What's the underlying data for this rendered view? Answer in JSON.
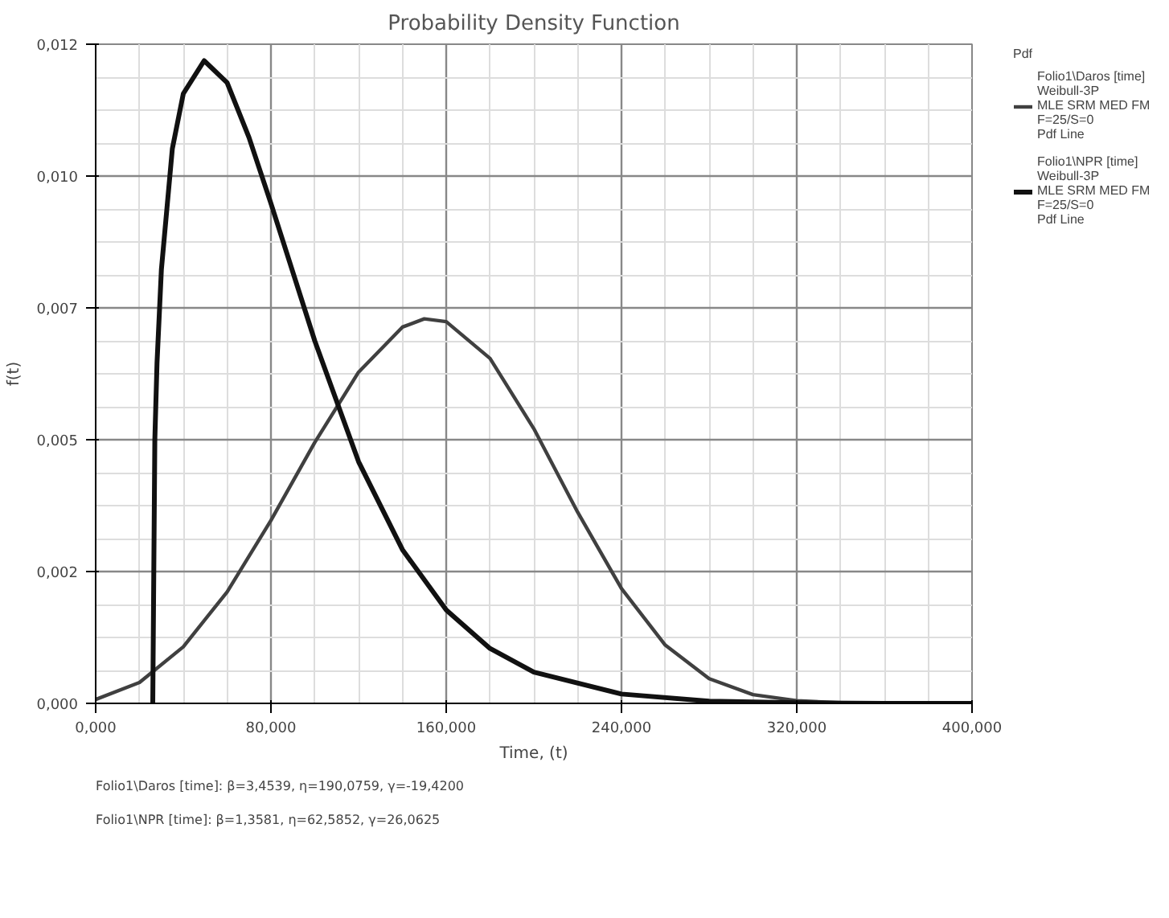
{
  "chart_data": {
    "type": "line",
    "title": "Probability Density Function",
    "xlabel": "Time, (t)",
    "ylabel": "f(t)",
    "legend_title": "Pdf",
    "legend": "right",
    "grid": true,
    "line_style": "solid",
    "marker": "none",
    "xlim": [
      0,
      400
    ],
    "ylim": [
      0,
      0.012
    ],
    "xticks": [
      {
        "value": 0,
        "label": "0,000"
      },
      {
        "value": 80,
        "label": "80,000"
      },
      {
        "value": 160,
        "label": "160,000"
      },
      {
        "value": 240,
        "label": "240,000"
      },
      {
        "value": 320,
        "label": "320,000"
      },
      {
        "value": 400,
        "label": "400,000"
      }
    ],
    "yticks": [
      {
        "value": 0,
        "label": "0,000"
      },
      {
        "value": 0.0024,
        "label": "0,002"
      },
      {
        "value": 0.0048,
        "label": "0,005"
      },
      {
        "value": 0.0072,
        "label": "0,007"
      },
      {
        "value": 0.0096,
        "label": "0,010"
      },
      {
        "value": 0.012,
        "label": "0,012"
      }
    ],
    "series": [
      {
        "name": "Folio1\\Daros [time]\nWeibull-3P\nMLE SRM MED FM\nF=25/S=0\nPdf Line",
        "color": "#404040",
        "x": [
          0,
          20,
          40,
          60,
          80,
          100,
          120,
          140,
          150,
          160,
          180,
          200,
          220,
          240,
          260,
          280,
          300,
          320,
          340,
          360,
          400
        ],
        "values": [
          7e-05,
          0.00038,
          0.00103,
          0.00203,
          0.00333,
          0.00475,
          0.00603,
          0.00685,
          0.007,
          0.00695,
          0.00628,
          0.005,
          0.00348,
          0.00209,
          0.00106,
          0.00045,
          0.00016,
          5e-05,
          1e-05,
          0,
          0
        ]
      },
      {
        "name": "Folio1\\NPR [time]\nWeibull-3P\nMLE SRM MED FM\nF=25/S=0\nPdf Line",
        "color": "#111111",
        "x": [
          26.0625,
          27,
          28,
          30,
          35,
          40,
          49.5,
          60,
          70,
          80,
          100,
          120,
          140,
          160,
          180,
          200,
          240,
          280,
          320,
          360,
          400
        ],
        "values": [
          0,
          0.0048,
          0.0062,
          0.0079,
          0.0101,
          0.0111,
          0.0117,
          0.0113,
          0.0103,
          0.0091,
          0.0066,
          0.0044,
          0.0028,
          0.0017,
          0.001,
          0.00057,
          0.00017,
          4e-05,
          1e-05,
          0,
          0
        ]
      }
    ],
    "annotations": [
      "Folio1\\Daros [time]:   β=3,4539, η=190,0759, γ=-19,4200",
      "Folio1\\NPR [time]:   β=1,3581, η=62,5852, γ=26,0625"
    ]
  }
}
